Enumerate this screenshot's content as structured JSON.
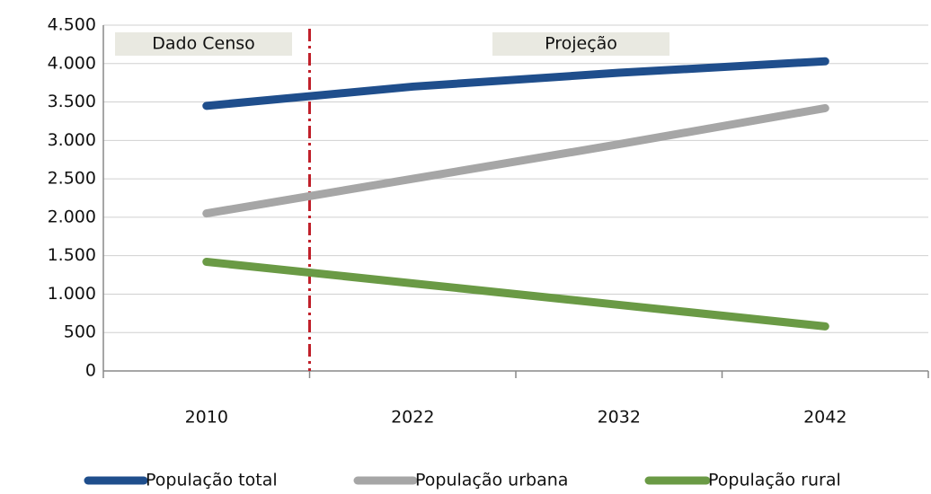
{
  "chart_data": {
    "type": "line",
    "annotations": [
      "Dado Censo",
      "Projeção"
    ],
    "categories": [
      "2010",
      "2022",
      "2032",
      "2042"
    ],
    "series": [
      {
        "name": "População total",
        "color": "#1f4e8c",
        "values": [
          3450,
          3700,
          3880,
          4030
        ]
      },
      {
        "name": "População urbana",
        "color": "#a6a6a6",
        "values": [
          2050,
          2500,
          2950,
          3420
        ]
      },
      {
        "name": "População rural",
        "color": "#6a9a45",
        "values": [
          1420,
          1140,
          860,
          580
        ]
      }
    ],
    "ylim": [
      0,
      4500
    ],
    "yticks": [
      0,
      500,
      {
        "value": 1000,
        "label": "1.000"
      },
      {
        "value": 1500,
        "label": "1.500"
      },
      {
        "value": 2000,
        "label": "2.000"
      },
      {
        "value": 2500,
        "label": "2.500"
      },
      {
        "value": 3000,
        "label": "3.000"
      },
      {
        "value": 3500,
        "label": "3.500"
      },
      {
        "value": 4000,
        "label": "4.000"
      },
      {
        "value": 4500,
        "label": "4.500"
      }
    ],
    "grid": true,
    "legend": "bottom"
  }
}
